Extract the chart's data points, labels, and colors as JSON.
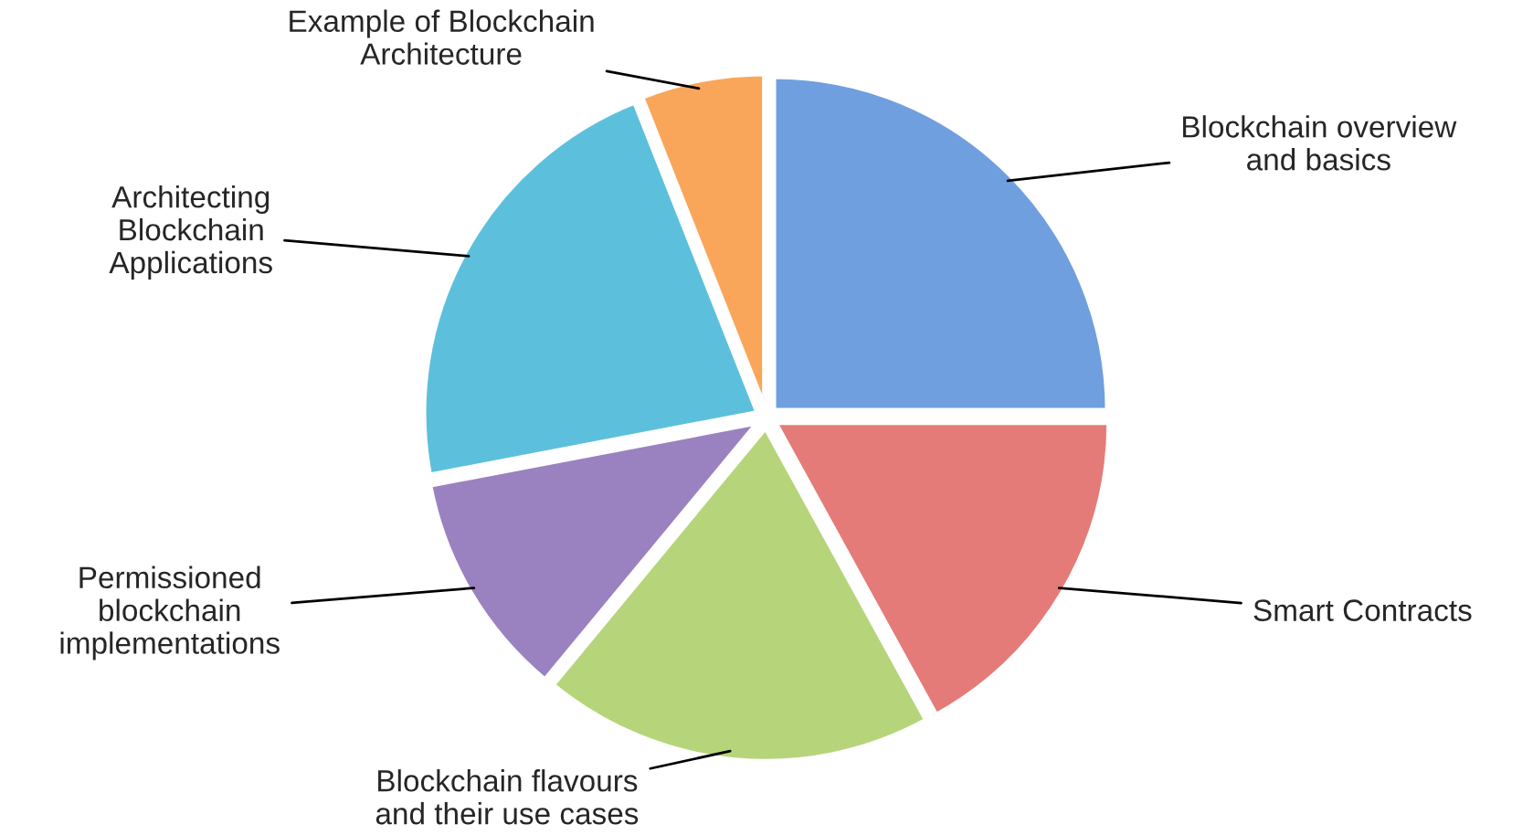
{
  "chart_data": {
    "type": "pie",
    "categories": [
      "Blockchain overview\nand basics",
      "Smart Contracts",
      "Blockchain flavours\nand their use cases",
      "Permissioned\nblockchain\nimplementations",
      "Architecting\nBlockchain\nApplications",
      "Example of Blockchain\nArchitecture"
    ],
    "values": [
      25,
      17,
      19,
      11,
      22,
      6
    ],
    "colors": [
      "#6f9fdf",
      "#e57b78",
      "#b6d57a",
      "#9a82c0",
      "#5cc0dc",
      "#f9a65a"
    ],
    "legend": false
  }
}
